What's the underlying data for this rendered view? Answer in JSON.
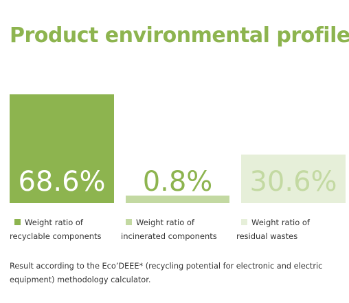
{
  "title": "Product environmental profile",
  "colors": {
    "title": "#8db44f",
    "recyclable": "#8db44f",
    "incinerated": "#c3d9a2",
    "residual": "#e6efd9"
  },
  "chart_data": {
    "type": "bar",
    "categories": [
      "Weight ratio of recyclable components",
      "Weight ratio of incinerated components",
      "Weight ratio of residual wastes"
    ],
    "values": [
      68.6,
      0.8,
      30.6
    ],
    "value_labels": [
      "68.6%",
      "0.8%",
      "30.6%"
    ],
    "unit": "%",
    "legend": [
      {
        "line1": "Weight ratio of",
        "line2": "recyclable components",
        "color": "#8db44f"
      },
      {
        "line1": "Weight ratio of",
        "line2": "incinerated components",
        "color": "#c3d9a2"
      },
      {
        "line1": "Weight ratio of",
        "line2": "residual wastes",
        "color": "#e6efd9"
      }
    ]
  },
  "footnote": "Result according to the Eco’DEEE* (recycling potential for electronic and electric equipment) methodology calculator."
}
